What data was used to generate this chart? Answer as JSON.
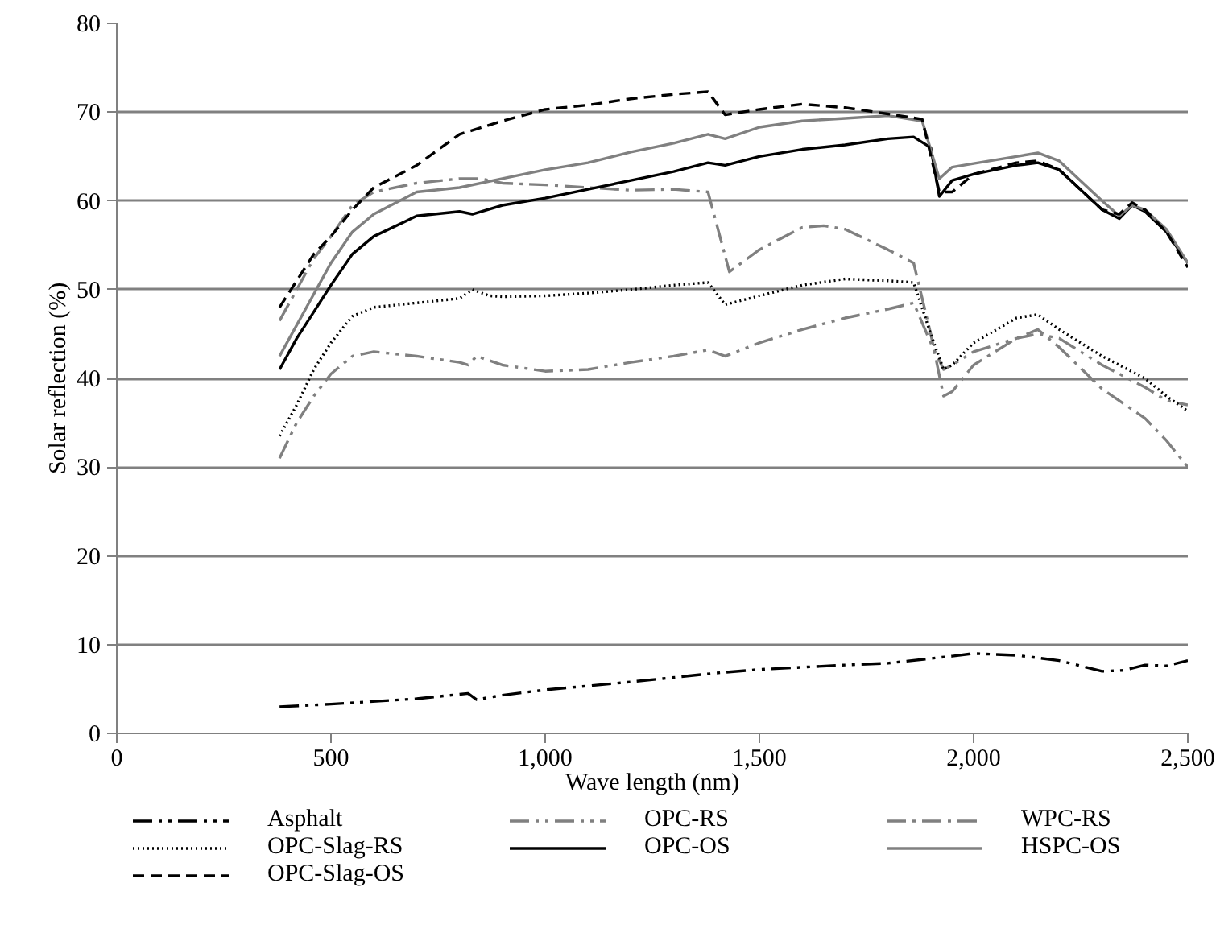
{
  "chart_data": {
    "type": "line",
    "xlabel": "Wave length (nm)",
    "ylabel": "Solar reflection (%)",
    "xlim": [
      0,
      2500
    ],
    "ylim": [
      0,
      80
    ],
    "xticks": [
      0,
      500,
      {
        "value": 1000,
        "label": "1,000"
      },
      {
        "value": 1500,
        "label": "1,500"
      },
      {
        "value": 2000,
        "label": "2,000"
      },
      {
        "value": 2500,
        "label": "2,500"
      }
    ],
    "yticks": [
      0,
      10,
      20,
      30,
      40,
      50,
      60,
      70,
      80
    ],
    "grid": "y",
    "legend": "bottom",
    "series": [
      {
        "name": "Asphalt",
        "color": "#000000",
        "line_style": "dashdotdot",
        "x": [
          380,
          500,
          700,
          820,
          840,
          900,
          1000,
          1200,
          1400,
          1500,
          1700,
          1800,
          1950,
          2000,
          2100,
          2200,
          2300,
          2350,
          2400,
          2450,
          2500
        ],
        "values": [
          3,
          3.3,
          3.9,
          4.5,
          3.8,
          4.3,
          4.9,
          5.8,
          6.8,
          7.2,
          7.7,
          7.9,
          8.7,
          9,
          8.8,
          8.2,
          7,
          7.1,
          7.7,
          7.6,
          8.2
        ]
      },
      {
        "name": "OPC-RS",
        "color": "#808080",
        "line_style": "dashdotdot",
        "x": [
          380,
          420,
          460,
          500,
          550,
          600,
          700,
          800,
          820,
          840,
          900,
          1000,
          1100,
          1200,
          1300,
          1380,
          1420,
          1500,
          1600,
          1700,
          1800,
          1860,
          1900,
          1930,
          1950,
          2000,
          2100,
          2150,
          2200,
          2300,
          2400,
          2450,
          2500
        ],
        "values": [
          31,
          35,
          38,
          40.5,
          42.5,
          43,
          42.5,
          41.8,
          41.5,
          42.5,
          41.5,
          40.8,
          41,
          41.8,
          42.5,
          43.2,
          42.5,
          44,
          45.5,
          46.8,
          47.8,
          48.5,
          44,
          41,
          41.5,
          43,
          44.5,
          45,
          44.5,
          41.5,
          39,
          37.5,
          37
        ]
      },
      {
        "name": "WPC-RS",
        "color": "#808080",
        "line_style": "dashdot",
        "x": [
          380,
          420,
          460,
          500,
          550,
          600,
          700,
          800,
          850,
          900,
          1000,
          1100,
          1200,
          1300,
          1380,
          1430,
          1500,
          1600,
          1650,
          1700,
          1800,
          1860,
          1900,
          1930,
          1950,
          2000,
          2100,
          2150,
          2200,
          2300,
          2400,
          2450,
          2500
        ],
        "values": [
          46.5,
          50,
          53.5,
          56,
          59.5,
          61,
          62,
          62.5,
          62.5,
          62,
          61.8,
          61.5,
          61.2,
          61.3,
          61,
          52,
          54.5,
          57,
          57.2,
          56.8,
          54.5,
          53,
          45,
          38,
          38.5,
          41.5,
          44.5,
          45.5,
          43.5,
          38.8,
          35.5,
          33,
          30
        ]
      },
      {
        "name": "OPC-Slag-RS",
        "color": "#000000",
        "line_style": "dotted",
        "x": [
          380,
          420,
          460,
          500,
          550,
          600,
          700,
          800,
          830,
          870,
          900,
          1000,
          1100,
          1200,
          1300,
          1380,
          1420,
          1500,
          1600,
          1700,
          1800,
          1860,
          1900,
          1930,
          1950,
          2000,
          2100,
          2150,
          2200,
          2300,
          2400,
          2450,
          2500
        ],
        "values": [
          33.5,
          37,
          41,
          44,
          47,
          48,
          48.5,
          49,
          50,
          49.3,
          49.2,
          49.3,
          49.6,
          50,
          50.5,
          50.8,
          48.3,
          49.3,
          50.5,
          51.2,
          51,
          50.8,
          45,
          41,
          41.5,
          44,
          46.8,
          47.2,
          45.5,
          42.5,
          40,
          38,
          36.3
        ]
      },
      {
        "name": "OPC-OS",
        "color": "#000000",
        "line_style": "solid",
        "x": [
          380,
          420,
          460,
          500,
          550,
          600,
          700,
          800,
          830,
          900,
          1000,
          1100,
          1200,
          1300,
          1380,
          1420,
          1500,
          1600,
          1700,
          1800,
          1860,
          1900,
          1920,
          1950,
          2000,
          2100,
          2150,
          2200,
          2300,
          2340,
          2370,
          2400,
          2450,
          2500
        ],
        "values": [
          41,
          44.5,
          47.5,
          50.5,
          54,
          56,
          58.3,
          58.8,
          58.5,
          59.5,
          60.3,
          61.3,
          62.3,
          63.3,
          64.3,
          64,
          65,
          65.8,
          66.3,
          67,
          67.2,
          66,
          60.5,
          62.3,
          63,
          64,
          64.3,
          63.5,
          59,
          58,
          59.5,
          58.8,
          56.5,
          53
        ]
      },
      {
        "name": "HSPC-OS",
        "color": "#808080",
        "line_style": "solid",
        "x": [
          380,
          420,
          460,
          500,
          550,
          600,
          700,
          800,
          900,
          1000,
          1100,
          1200,
          1300,
          1380,
          1420,
          1500,
          1600,
          1700,
          1800,
          1880,
          1920,
          1950,
          2000,
          2100,
          2150,
          2200,
          2300,
          2340,
          2370,
          2400,
          2450,
          2500
        ],
        "values": [
          42.5,
          46,
          49.5,
          53,
          56.5,
          58.5,
          61,
          61.5,
          62.5,
          63.5,
          64.3,
          65.5,
          66.5,
          67.5,
          67,
          68.3,
          69,
          69.3,
          69.6,
          69,
          62.5,
          63.8,
          64.2,
          65,
          65.4,
          64.5,
          60,
          58.3,
          59.5,
          59,
          56.8,
          53
        ]
      },
      {
        "name": "OPC-Slag-OS",
        "color": "#000000",
        "line_style": "dashed",
        "x": [
          380,
          420,
          460,
          500,
          550,
          600,
          700,
          800,
          900,
          1000,
          1100,
          1200,
          1300,
          1380,
          1420,
          1500,
          1600,
          1700,
          1800,
          1880,
          1920,
          1950,
          2000,
          2100,
          2150,
          2200,
          2300,
          2340,
          2370,
          2400,
          2450,
          2500
        ],
        "values": [
          48,
          51,
          54,
          56,
          59,
          61.5,
          64,
          67.5,
          69,
          70.3,
          70.8,
          71.5,
          72,
          72.3,
          69.7,
          70.3,
          70.9,
          70.5,
          69.8,
          69.2,
          61,
          61,
          63,
          64.3,
          64.5,
          63.5,
          59,
          58.5,
          59.8,
          59,
          56.5,
          52.5
        ]
      }
    ]
  }
}
